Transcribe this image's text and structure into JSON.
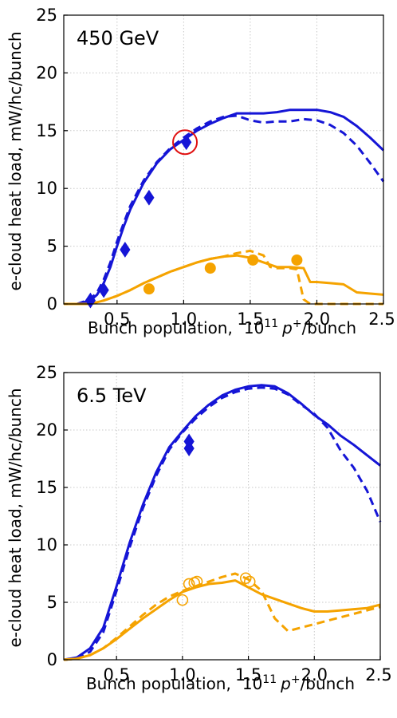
{
  "chart_data": [
    {
      "type": "line",
      "title": "450 GeV",
      "xlabel": "Bunch population,",
      "xlabel_unit_base": "10",
      "xlabel_unit_exp": "11",
      "xlabel_unit_particle": "p",
      "xlabel_unit_charge": "+",
      "xlabel_unit_tail": "/bunch",
      "ylabel": "e-cloud heat load,  mW/hc/bunch",
      "xlim": [
        0.1,
        2.5
      ],
      "ylim": [
        0,
        25
      ],
      "xticks": [
        0.5,
        1.0,
        1.5,
        2.0,
        2.5
      ],
      "xtick_labels": [
        "0.5",
        "1.0",
        "1.5",
        "2.0",
        "2.5"
      ],
      "yticks": [
        0,
        5,
        10,
        15,
        20,
        25
      ],
      "ytick_labels": [
        "0",
        "5",
        "10",
        "15",
        "20",
        "25"
      ],
      "grid": true,
      "series": [
        {
          "color": "#1515d6",
          "style": "solid",
          "x": [
            0.1,
            0.2,
            0.3,
            0.35,
            0.4,
            0.45,
            0.5,
            0.55,
            0.6,
            0.7,
            0.8,
            0.9,
            1.0,
            1.1,
            1.2,
            1.3,
            1.4,
            1.5,
            1.6,
            1.7,
            1.8,
            1.9,
            2.0,
            2.1,
            2.2,
            2.3,
            2.4,
            2.5
          ],
          "y": [
            0,
            0,
            0.3,
            0.8,
            1.8,
            3.2,
            5.0,
            6.7,
            8.2,
            10.5,
            12.2,
            13.4,
            14.2,
            15.0,
            15.6,
            16.1,
            16.5,
            16.5,
            16.5,
            16.6,
            16.8,
            16.8,
            16.8,
            16.6,
            16.2,
            15.4,
            14.4,
            13.3
          ]
        },
        {
          "color": "#1515d6",
          "style": "dashed",
          "x": [
            0.1,
            0.2,
            0.3,
            0.35,
            0.4,
            0.45,
            0.5,
            0.55,
            0.6,
            0.7,
            0.8,
            0.9,
            1.0,
            1.1,
            1.2,
            1.3,
            1.4,
            1.5,
            1.6,
            1.7,
            1.8,
            1.9,
            2.0,
            2.1,
            2.2,
            2.3,
            2.4,
            2.5
          ],
          "y": [
            0,
            0,
            0.4,
            1.0,
            2.1,
            3.6,
            5.4,
            7.0,
            8.5,
            10.7,
            12.3,
            13.5,
            14.4,
            15.2,
            15.8,
            16.2,
            16.3,
            15.9,
            15.7,
            15.8,
            15.8,
            16.0,
            15.9,
            15.5,
            14.8,
            13.7,
            12.2,
            10.6
          ]
        },
        {
          "color": "#f5a300",
          "style": "solid",
          "x": [
            0.1,
            0.3,
            0.4,
            0.5,
            0.6,
            0.7,
            0.8,
            0.9,
            1.0,
            1.1,
            1.2,
            1.3,
            1.4,
            1.5,
            1.6,
            1.7,
            1.8,
            1.9,
            1.95,
            2.0,
            2.1,
            2.2,
            2.3,
            2.4,
            2.5
          ],
          "y": [
            0,
            0,
            0.3,
            0.7,
            1.2,
            1.8,
            2.3,
            2.8,
            3.2,
            3.6,
            3.9,
            4.1,
            4.2,
            4.0,
            3.6,
            3.2,
            3.2,
            3.1,
            1.9,
            1.9,
            1.8,
            1.7,
            1.0,
            0.9,
            0.8
          ]
        },
        {
          "color": "#f5a300",
          "style": "dashed",
          "x": [
            0.1,
            0.3,
            0.4,
            0.5,
            0.6,
            0.7,
            0.8,
            0.9,
            1.0,
            1.1,
            1.2,
            1.3,
            1.4,
            1.5,
            1.6,
            1.65,
            1.7,
            1.8,
            1.85,
            1.9,
            1.95,
            2.0,
            2.1,
            2.2,
            2.3,
            2.4,
            2.5
          ],
          "y": [
            0,
            0,
            0.3,
            0.7,
            1.2,
            1.8,
            2.3,
            2.8,
            3.2,
            3.6,
            3.9,
            4.1,
            4.4,
            4.6,
            4.2,
            3.2,
            3.1,
            3.1,
            3.0,
            0.4,
            0,
            0,
            0,
            0,
            0,
            0,
            0
          ]
        }
      ],
      "markers": [
        {
          "shape": "diamond",
          "color": "#1515d6",
          "filled": true,
          "points": [
            [
              0.3,
              0.3
            ],
            [
              0.4,
              1.2
            ],
            [
              0.56,
              4.7
            ],
            [
              0.74,
              9.2
            ],
            [
              1.02,
              14.0
            ]
          ]
        },
        {
          "shape": "circle",
          "color": "#f5a300",
          "filled": true,
          "points": [
            [
              0.74,
              1.3
            ],
            [
              1.2,
              3.1
            ],
            [
              1.52,
              3.8
            ],
            [
              1.85,
              3.8
            ]
          ]
        }
      ],
      "annotation": {
        "shape": "circle",
        "color": "#e01010",
        "x": 1.01,
        "y": 14.0
      }
    },
    {
      "type": "line",
      "title": "6.5 TeV",
      "xlabel": "Bunch population,",
      "xlabel_unit_base": "10",
      "xlabel_unit_exp": "11",
      "xlabel_unit_particle": "p",
      "xlabel_unit_charge": "+",
      "xlabel_unit_tail": "/bunch",
      "ylabel": "e-cloud heat load,  mW/hc/bunch",
      "xlim": [
        0.1,
        2.5
      ],
      "ylim": [
        0,
        25
      ],
      "xticks": [
        0.5,
        1.0,
        1.5,
        2.0,
        2.5
      ],
      "xtick_labels": [
        "0.5",
        "1.0",
        "1.5",
        "2.0",
        "2.5"
      ],
      "yticks": [
        0,
        5,
        10,
        15,
        20,
        25
      ],
      "ytick_labels": [
        "0",
        "5",
        "10",
        "15",
        "20",
        "25"
      ],
      "grid": true,
      "series": [
        {
          "color": "#1515d6",
          "style": "solid",
          "x": [
            0.1,
            0.2,
            0.3,
            0.4,
            0.5,
            0.6,
            0.7,
            0.8,
            0.9,
            1.0,
            1.1,
            1.2,
            1.3,
            1.4,
            1.5,
            1.6,
            1.7,
            1.8,
            1.9,
            2.0,
            2.1,
            2.2,
            2.3,
            2.4,
            2.5
          ],
          "y": [
            0,
            0.2,
            1.0,
            2.8,
            6.4,
            10.2,
            13.5,
            16.3,
            18.5,
            19.9,
            21.2,
            22.2,
            23.0,
            23.5,
            23.8,
            23.9,
            23.8,
            23.2,
            22.3,
            21.3,
            20.5,
            19.5,
            18.7,
            17.8,
            16.9
          ]
        },
        {
          "color": "#1515d6",
          "style": "dashed",
          "x": [
            0.1,
            0.2,
            0.3,
            0.4,
            0.5,
            0.6,
            0.7,
            0.8,
            0.9,
            1.0,
            1.1,
            1.2,
            1.3,
            1.4,
            1.5,
            1.6,
            1.7,
            1.8,
            1.9,
            2.0,
            2.1,
            2.2,
            2.3,
            2.4,
            2.5
          ],
          "y": [
            0,
            0.1,
            0.7,
            2.4,
            6.0,
            9.8,
            13.2,
            16.0,
            18.3,
            19.8,
            21.0,
            22.0,
            22.8,
            23.3,
            23.6,
            23.7,
            23.6,
            23.1,
            22.2,
            21.4,
            20.2,
            18.2,
            16.7,
            14.7,
            12.0
          ]
        },
        {
          "color": "#f5a300",
          "style": "solid",
          "x": [
            0.1,
            0.2,
            0.3,
            0.4,
            0.5,
            0.6,
            0.7,
            0.8,
            0.9,
            1.0,
            1.1,
            1.2,
            1.3,
            1.4,
            1.5,
            1.6,
            1.7,
            1.8,
            1.9,
            2.0,
            2.1,
            2.2,
            2.3,
            2.4,
            2.5
          ],
          "y": [
            0,
            0.1,
            0.4,
            1.0,
            1.8,
            2.7,
            3.6,
            4.4,
            5.2,
            5.9,
            6.3,
            6.6,
            6.7,
            6.9,
            6.3,
            5.7,
            5.3,
            4.9,
            4.5,
            4.2,
            4.2,
            4.3,
            4.4,
            4.5,
            4.8
          ]
        },
        {
          "color": "#f5a300",
          "style": "dashed",
          "x": [
            0.1,
            0.2,
            0.3,
            0.4,
            0.5,
            0.6,
            0.7,
            0.8,
            0.9,
            1.0,
            1.1,
            1.2,
            1.3,
            1.4,
            1.5,
            1.6,
            1.7,
            1.8,
            1.9,
            2.0,
            2.1,
            2.2,
            2.3,
            2.4,
            2.5
          ],
          "y": [
            0,
            0.1,
            0.4,
            1.0,
            1.9,
            2.9,
            3.9,
            4.8,
            5.5,
            6.0,
            6.4,
            6.8,
            7.2,
            7.5,
            7.0,
            6.0,
            3.6,
            2.5,
            2.8,
            3.1,
            3.4,
            3.7,
            4.0,
            4.3,
            4.6
          ]
        }
      ],
      "markers": [
        {
          "shape": "diamond",
          "color": "#1515d6",
          "filled": true,
          "points": [
            [
              1.05,
              19.0
            ],
            [
              1.05,
              18.4
            ]
          ]
        },
        {
          "shape": "circle",
          "color": "#f5a300",
          "filled": false,
          "points": [
            [
              1.0,
              5.2
            ],
            [
              1.05,
              6.6
            ],
            [
              1.09,
              6.7
            ],
            [
              1.11,
              6.8
            ],
            [
              1.48,
              7.1
            ],
            [
              1.51,
              6.8
            ]
          ]
        }
      ]
    }
  ]
}
